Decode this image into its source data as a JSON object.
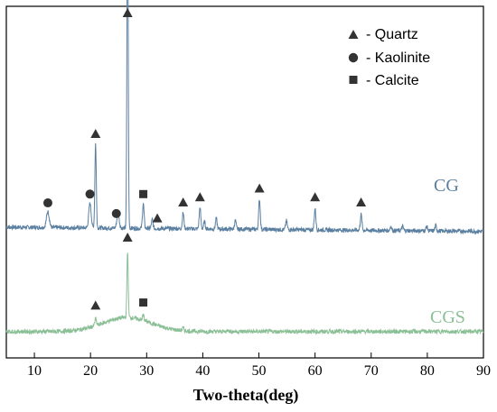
{
  "chart_data": {
    "type": "line",
    "xlabel": "Two-theta(deg)",
    "xlim": [
      5,
      90
    ],
    "xticks": [
      "10",
      "20",
      "30",
      "40",
      "50",
      "60",
      "70",
      "80",
      "90"
    ],
    "legend": {
      "placement": "top-right",
      "items": [
        {
          "marker": "triangle",
          "label": "- Quartz"
        },
        {
          "marker": "circle",
          "label": "- Kaolinite"
        },
        {
          "marker": "square",
          "label": "- Calcite"
        }
      ]
    },
    "series": [
      {
        "name": "CG",
        "color": "#5a7fa0",
        "baseline": 0.36,
        "peaks": [
          {
            "x": 12.4,
            "h": 0.045,
            "w": 0.35
          },
          {
            "x": 19.9,
            "h": 0.07,
            "w": 0.3
          },
          {
            "x": 20.9,
            "h": 0.24,
            "w": 0.18
          },
          {
            "x": 24.9,
            "h": 0.04,
            "w": 0.3
          },
          {
            "x": 26.6,
            "h": 0.97,
            "w": 0.16
          },
          {
            "x": 29.4,
            "h": 0.07,
            "w": 0.2
          },
          {
            "x": 31.0,
            "h": 0.025,
            "w": 0.2
          },
          {
            "x": 36.5,
            "h": 0.045,
            "w": 0.2
          },
          {
            "x": 39.5,
            "h": 0.06,
            "w": 0.2
          },
          {
            "x": 40.3,
            "h": 0.02,
            "w": 0.2
          },
          {
            "x": 42.4,
            "h": 0.03,
            "w": 0.2
          },
          {
            "x": 45.8,
            "h": 0.025,
            "w": 0.2
          },
          {
            "x": 50.1,
            "h": 0.085,
            "w": 0.2
          },
          {
            "x": 54.9,
            "h": 0.025,
            "w": 0.2
          },
          {
            "x": 60.0,
            "h": 0.06,
            "w": 0.2
          },
          {
            "x": 68.2,
            "h": 0.045,
            "w": 0.2
          },
          {
            "x": 73.5,
            "h": 0.012,
            "w": 0.2
          },
          {
            "x": 75.6,
            "h": 0.012,
            "w": 0.2
          },
          {
            "x": 79.9,
            "h": 0.012,
            "w": 0.2
          },
          {
            "x": 81.5,
            "h": 0.015,
            "w": 0.2
          }
        ],
        "markers": [
          {
            "x": 12.4,
            "shape": "circle"
          },
          {
            "x": 19.9,
            "shape": "circle"
          },
          {
            "x": 20.9,
            "shape": "triangle"
          },
          {
            "x": 24.6,
            "shape": "circle"
          },
          {
            "x": 26.6,
            "shape": "triangle"
          },
          {
            "x": 29.4,
            "shape": "square"
          },
          {
            "x": 31.9,
            "shape": "triangle"
          },
          {
            "x": 36.5,
            "shape": "triangle"
          },
          {
            "x": 39.5,
            "shape": "triangle"
          },
          {
            "x": 50.1,
            "shape": "triangle"
          },
          {
            "x": 60.0,
            "shape": "triangle"
          },
          {
            "x": 68.2,
            "shape": "triangle"
          }
        ]
      },
      {
        "name": "CGS",
        "color": "#8bbf96",
        "baseline": 0.075,
        "hump": {
          "center": 26.5,
          "height": 0.04,
          "width": 6.0
        },
        "peaks": [
          {
            "x": 20.9,
            "h": 0.02,
            "w": 0.2
          },
          {
            "x": 26.6,
            "h": 0.19,
            "w": 0.16
          },
          {
            "x": 29.4,
            "h": 0.015,
            "w": 0.2
          },
          {
            "x": 36.5,
            "h": 0.008,
            "w": 0.2
          },
          {
            "x": 44.5,
            "h": 0.006,
            "w": 0.2
          }
        ],
        "markers": [
          {
            "x": 20.9,
            "shape": "triangle"
          },
          {
            "x": 26.6,
            "shape": "triangle"
          },
          {
            "x": 29.4,
            "shape": "square"
          }
        ]
      }
    ]
  }
}
